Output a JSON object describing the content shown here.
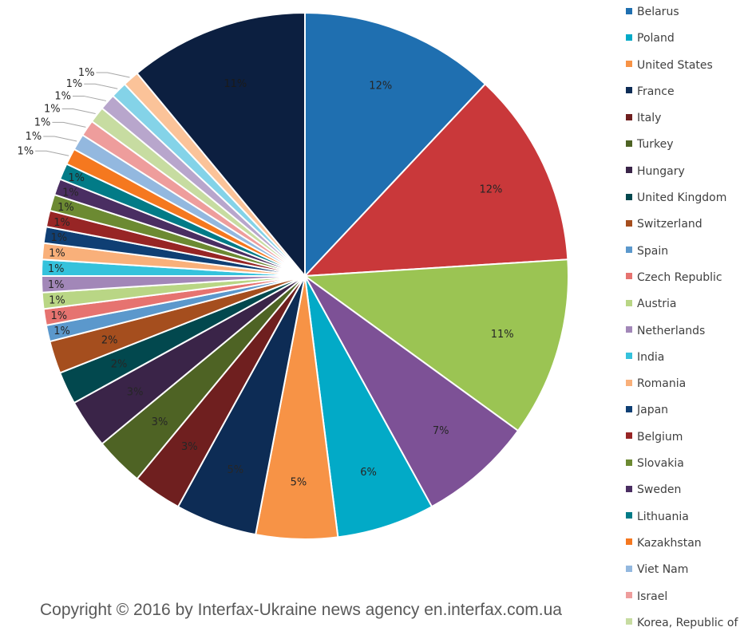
{
  "chart_data": {
    "type": "pie",
    "title": "",
    "slices": [
      {
        "label": "Belarus",
        "value": 12,
        "display": "12%",
        "color": "#1f6fb0",
        "label_color": "#262626"
      },
      {
        "label": "Poland",
        "value": 12,
        "display": "12%",
        "color": "#c9383a",
        "label_color": "#262626"
      },
      {
        "label": "United States",
        "value": 11,
        "display": "11%",
        "color": "#9bc453",
        "label_color": "#262626"
      },
      {
        "label": "France",
        "value": 7,
        "display": "7%",
        "color": "#7d5196",
        "label_color": "#262626"
      },
      {
        "label": "Italy",
        "value": 6,
        "display": "6%",
        "color": "#02aac7",
        "label_color": "#262626"
      },
      {
        "label": "Turkey",
        "value": 5,
        "display": "5%",
        "color": "#f79346",
        "label_color": "#262626"
      },
      {
        "label": "Hungary",
        "value": 5,
        "display": "5%",
        "color": "#0d2c55",
        "label_color": "#262626"
      },
      {
        "label": "United Kingdom",
        "value": 3,
        "display": "3%",
        "color": "#6f1f1f",
        "label_color": "#262626"
      },
      {
        "label": "Switzerland",
        "value": 3,
        "display": "3%",
        "color": "#4e6324",
        "label_color": "#262626"
      },
      {
        "label": "Spain",
        "value": 3,
        "display": "3%",
        "color": "#3a2448",
        "label_color": "#262626"
      },
      {
        "label": "Czech Republic",
        "value": 2,
        "display": "2%",
        "color": "#02484e",
        "label_color": "#262626"
      },
      {
        "label": "Austria",
        "value": 2,
        "display": "2%",
        "color": "#a54e1e",
        "label_color": "#262626"
      },
      {
        "label": "Netherlands",
        "value": 1,
        "display": "1%",
        "color": "#5b98cc",
        "label_color": "#262626"
      },
      {
        "label": "India",
        "value": 1,
        "display": "1%",
        "color": "#e67370",
        "label_color": "#262626"
      },
      {
        "label": "Romania",
        "value": 1,
        "display": "1%",
        "color": "#b9d685",
        "label_color": "#262626"
      },
      {
        "label": "Japan",
        "value": 1,
        "display": "1%",
        "color": "#a287b8",
        "label_color": "#262626"
      },
      {
        "label": "Belgium",
        "value": 1,
        "display": "1%",
        "color": "#35c2dc",
        "label_color": "#262626"
      },
      {
        "label": "Slovakia",
        "value": 1,
        "display": "1%",
        "color": "#f9b07a",
        "label_color": "#262626"
      },
      {
        "label": "Sweden",
        "value": 1,
        "display": "1%",
        "color": "#0f3f74",
        "label_color": "#262626"
      },
      {
        "label": "Lithuania",
        "value": 1,
        "display": "1%",
        "color": "#972525",
        "label_color": "#262626"
      },
      {
        "label": "Kazakhstan",
        "value": 1,
        "display": "1%",
        "color": "#6c8a32",
        "label_color": "#262626"
      },
      {
        "label": "Viet Nam",
        "value": 1,
        "display": "1%",
        "color": "#4a2e62",
        "label_color": "#262626"
      },
      {
        "label": "Israel",
        "value": 1,
        "display": "1%",
        "color": "#027b87",
        "label_color": "#262626"
      },
      {
        "label": "Korea, Republic of",
        "value": 1,
        "display": "1%",
        "color": "#f5781f",
        "label_color": "#262626"
      },
      {
        "label": "",
        "value": 1,
        "display": "1%",
        "color": "#93b8df",
        "label_color": "#262626"
      },
      {
        "label": "",
        "value": 1,
        "display": "1%",
        "color": "#ee9d9c",
        "label_color": "#262626"
      },
      {
        "label": "",
        "value": 1,
        "display": "1%",
        "color": "#c7dca1",
        "label_color": "#262626"
      },
      {
        "label": "",
        "value": 1,
        "display": "1%",
        "color": "#b8a6cc",
        "label_color": "#262626"
      },
      {
        "label": "",
        "value": 1,
        "display": "1%",
        "color": "#84d3e8",
        "label_color": "#262626"
      },
      {
        "label": "",
        "value": 1,
        "display": "1%",
        "color": "#fbc399",
        "label_color": "#262626"
      },
      {
        "label": "",
        "value": 11,
        "display": "11%",
        "color": "#0c1f40",
        "label_color": "#1a1a1a"
      }
    ],
    "legend_position": "right"
  },
  "legend_items": [
    {
      "label": "Belarus",
      "color": "#1f6fb0"
    },
    {
      "label": "Poland",
      "color": "#02aac7"
    },
    {
      "label": "United States",
      "color": "#f79346"
    },
    {
      "label": "France",
      "color": "#0d2c55"
    },
    {
      "label": "Italy",
      "color": "#6f1f1f"
    },
    {
      "label": "Turkey",
      "color": "#4e6324"
    },
    {
      "label": "Hungary",
      "color": "#3a2448"
    },
    {
      "label": "United Kingdom",
      "color": "#02484e"
    },
    {
      "label": "Switzerland",
      "color": "#a54e1e"
    },
    {
      "label": "Spain",
      "color": "#5b98cc"
    },
    {
      "label": "Czech Republic",
      "color": "#e67370"
    },
    {
      "label": "Austria",
      "color": "#b9d685"
    },
    {
      "label": "Netherlands",
      "color": "#a287b8"
    },
    {
      "label": "India",
      "color": "#35c2dc"
    },
    {
      "label": "Romania",
      "color": "#f9b07a"
    },
    {
      "label": "Japan",
      "color": "#0f3f74"
    },
    {
      "label": "Belgium",
      "color": "#972525"
    },
    {
      "label": "Slovakia",
      "color": "#6c8a32"
    },
    {
      "label": "Sweden",
      "color": "#4a2e62"
    },
    {
      "label": "Lithuania",
      "color": "#027b87"
    },
    {
      "label": "Kazakhstan",
      "color": "#f5781f"
    },
    {
      "label": "Viet Nam",
      "color": "#93b8df"
    },
    {
      "label": "Israel",
      "color": "#ee9d9c"
    },
    {
      "label": "Korea, Republic of",
      "color": "#c7dca1"
    }
  ],
  "copyright": "Copyright © 2016 by Interfax-Ukraine news agency en.interfax.com.ua"
}
